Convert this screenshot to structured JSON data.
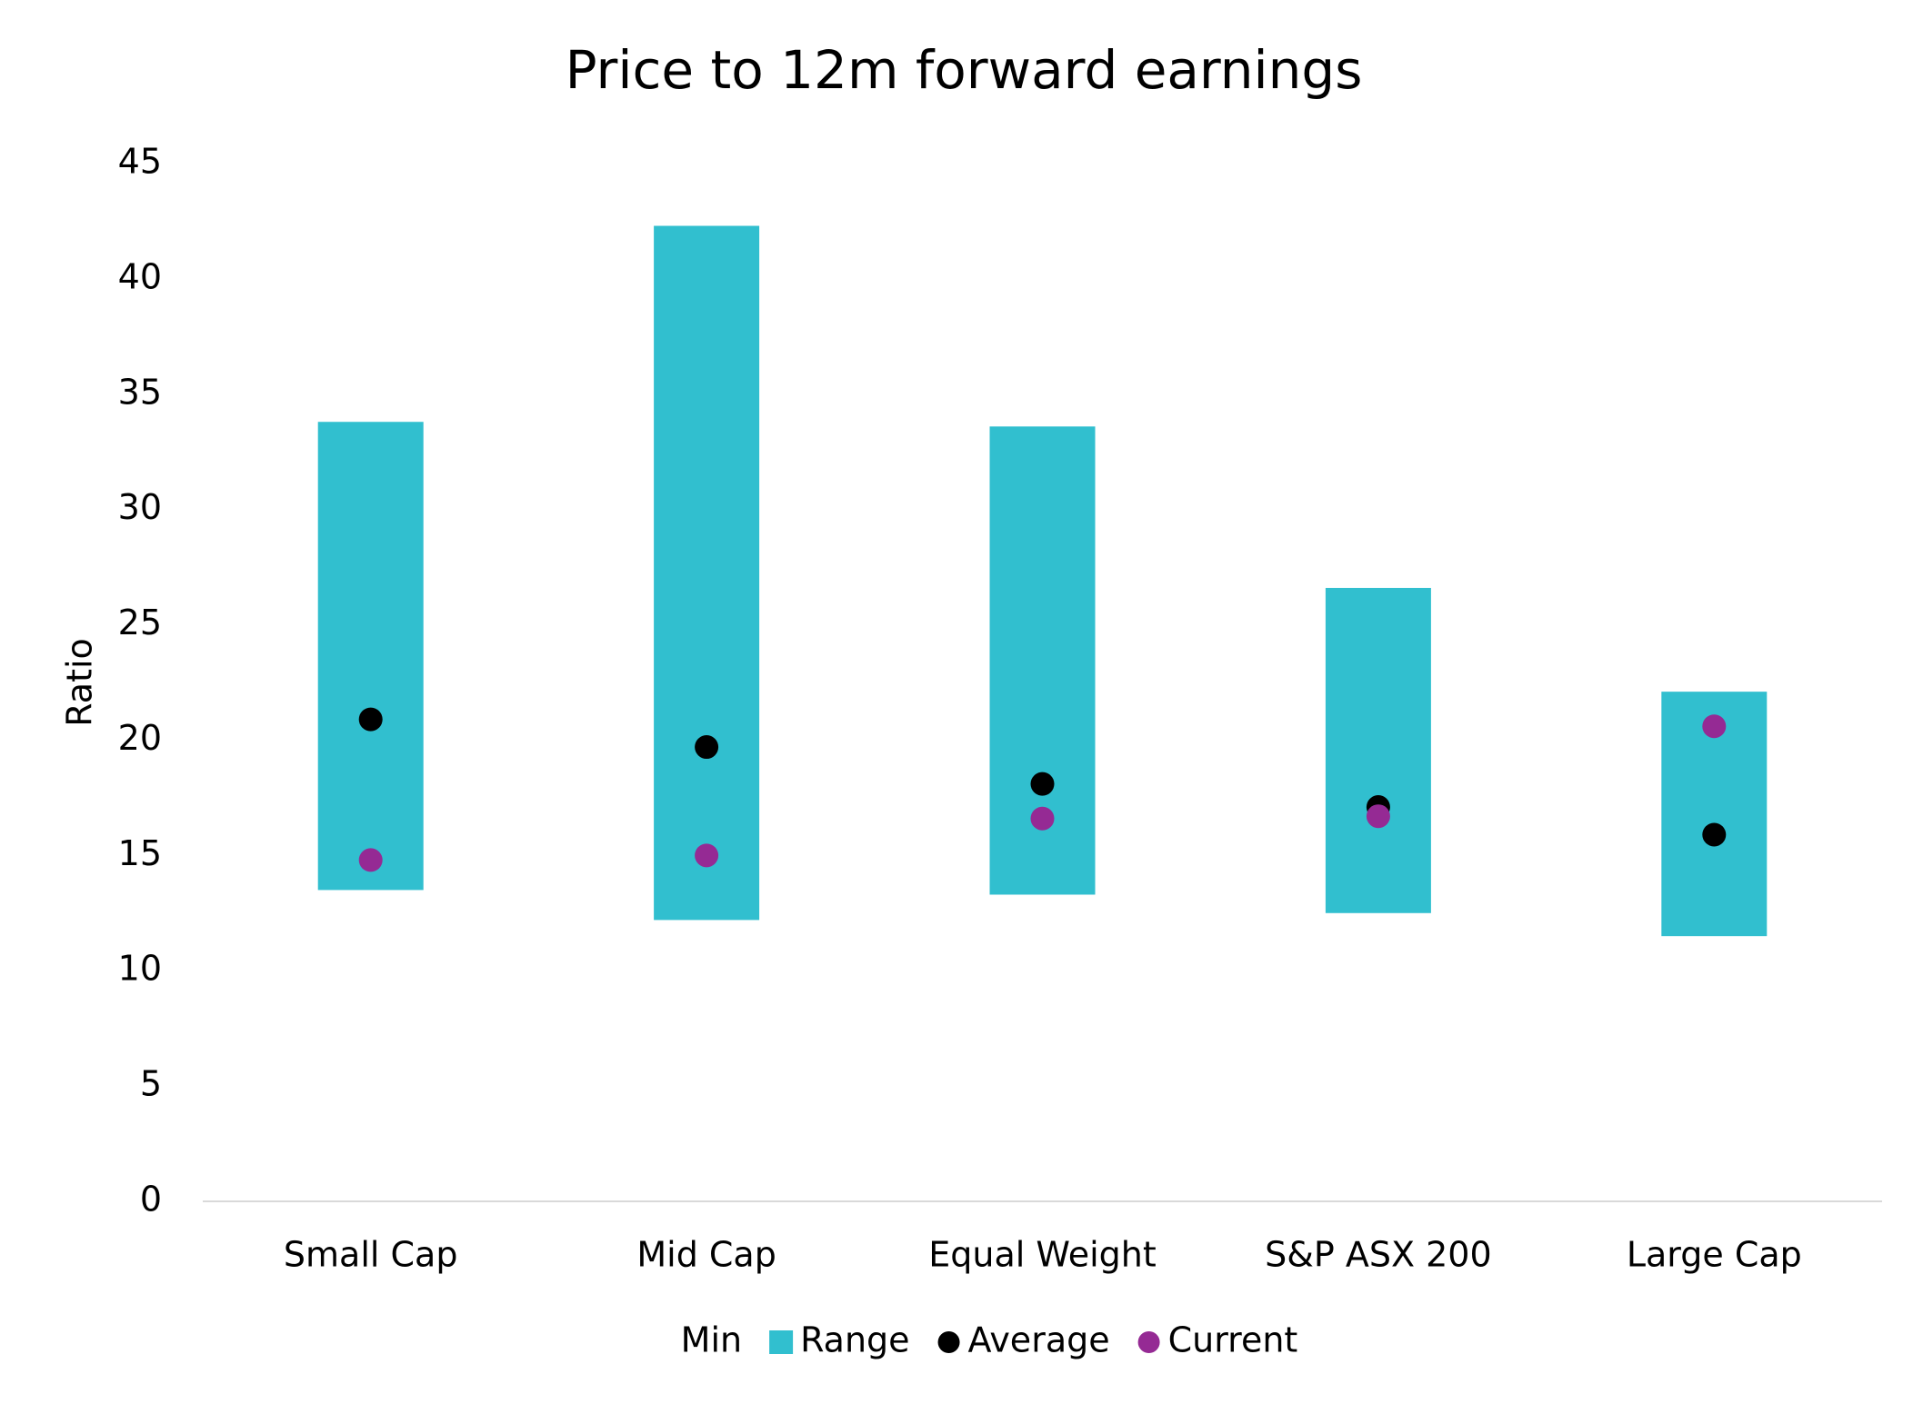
{
  "chart_data": {
    "type": "bar",
    "stacked": true,
    "title": "Price to 12m forward earnings",
    "y_label": "Ratio",
    "categories": [
      "Small Cap",
      "Mid Cap",
      "Equal Weight",
      "S&P ASX 200",
      "Large Cap"
    ],
    "series": [
      {
        "name": "Min",
        "type": "bar",
        "color": "none",
        "values": [
          13.5,
          12.2,
          13.3,
          12.5,
          11.5
        ]
      },
      {
        "name": "Range",
        "type": "bar",
        "color": "#31bfcf",
        "values": [
          20.3,
          30.1,
          20.3,
          14.1,
          10.6
        ]
      },
      {
        "name": "Average",
        "type": "scatter",
        "color": "#000000",
        "values": [
          20.9,
          19.7,
          18.1,
          17.1,
          15.9
        ]
      },
      {
        "name": "Current",
        "type": "scatter",
        "color": "#952a94",
        "values": [
          14.8,
          15.0,
          16.6,
          16.7,
          20.6
        ]
      }
    ],
    "ylim": [
      0,
      45
    ],
    "yticks": [
      0,
      5,
      10,
      15,
      20,
      25,
      30,
      35,
      40,
      45
    ],
    "grid": false,
    "legend": "bottom"
  }
}
